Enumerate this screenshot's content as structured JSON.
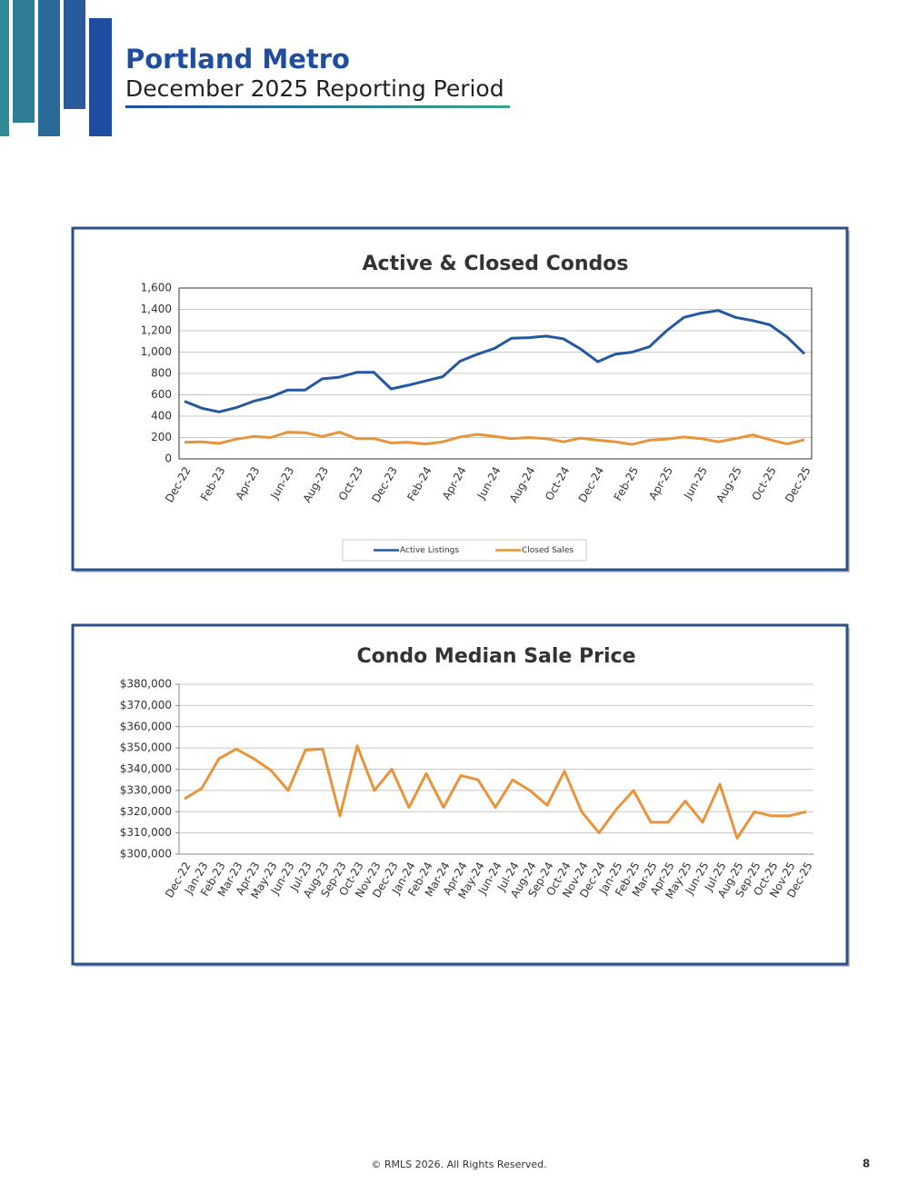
{
  "header": {
    "title": "Portland Metro",
    "subtitle": "December 2025 Reporting Period"
  },
  "chart_data": [
    {
      "type": "line",
      "title": "Active & Closed Condos",
      "categories": [
        "Dec-22",
        null,
        "Feb-23",
        null,
        "Apr-23",
        null,
        "Jun-23",
        null,
        "Aug-23",
        null,
        "Oct-23",
        null,
        "Dec-23",
        null,
        "Feb-24",
        null,
        "Apr-24",
        null,
        "Jun-24",
        null,
        "Aug-24",
        null,
        "Oct-24",
        null,
        "Dec-24",
        null,
        "Feb-25",
        null,
        "Apr-25",
        null,
        "Jun-25",
        null,
        "Aug-25",
        null,
        "Oct-25",
        null,
        "Dec-25"
      ],
      "series": [
        {
          "name": "Active Listings",
          "color": "#2458a0",
          "values": [
            540,
            475,
            440,
            480,
            540,
            580,
            645,
            645,
            750,
            765,
            810,
            810,
            655,
            690,
            730,
            770,
            915,
            980,
            1035,
            1130,
            1135,
            1150,
            1125,
            1030,
            910,
            980,
            1000,
            1050,
            1200,
            1325,
            1365,
            1390,
            1325,
            1295,
            1255,
            1140,
            985
          ]
        },
        {
          "name": "Closed Sales",
          "color": "#e8943a",
          "values": [
            155,
            160,
            145,
            185,
            210,
            200,
            250,
            245,
            210,
            250,
            190,
            190,
            150,
            155,
            140,
            160,
            205,
            230,
            210,
            190,
            200,
            190,
            160,
            195,
            175,
            160,
            135,
            175,
            185,
            205,
            190,
            160,
            190,
            225,
            180,
            140,
            180
          ]
        }
      ],
      "ylim": [
        0,
        1600
      ],
      "yticks": [
        0,
        200,
        400,
        600,
        800,
        {
          "value": 1000,
          "label": "1,000"
        },
        {
          "value": 1200,
          "label": "1,200"
        },
        {
          "value": 1400,
          "label": "1,400"
        },
        {
          "value": 1600,
          "label": "1,600"
        }
      ],
      "grid": true,
      "legend": "bottom"
    },
    {
      "type": "line",
      "title": "Condo Median Sale Price",
      "categories": [
        "Dec-22",
        "Jan-23",
        "Feb-23",
        "Mar-23",
        "Apr-23",
        "May-23",
        "Jun-23",
        "Jul-23",
        "Aug-23",
        "Sep-23",
        "Oct-23",
        "Nov-23",
        "Dec-23",
        "Jan-24",
        "Feb-24",
        "Mar-24",
        "Apr-24",
        "May-24",
        "Jun-24",
        "Jul-24",
        "Aug-24",
        "Sep-24",
        "Oct-24",
        "Nov-24",
        "Dec-24",
        "Jan-25",
        "Feb-25",
        "Mar-25",
        "Apr-25",
        "May-25",
        "Jun-25",
        "Jul-25",
        "Aug-25",
        "Sep-25",
        "Oct-25",
        "Nov-25",
        "Dec-25"
      ],
      "series": [
        {
          "name": "Median Sale Price",
          "color": "#e8943a",
          "values": [
            326000,
            331000,
            345000,
            349500,
            345000,
            339500,
            330000,
            349000,
            349500,
            318000,
            351000,
            330000,
            340000,
            322000,
            338000,
            322000,
            337000,
            335000,
            322000,
            335000,
            330000,
            323000,
            339000,
            320000,
            310000,
            321000,
            330000,
            315000,
            315000,
            325000,
            315000,
            333000,
            307500,
            320000,
            318000,
            318000,
            320000
          ]
        }
      ],
      "ylim": [
        300000,
        380000
      ],
      "yticks": [
        {
          "value": 300000,
          "label": "$300,000"
        },
        {
          "value": 310000,
          "label": "$310,000"
        },
        {
          "value": 320000,
          "label": "$320,000"
        },
        {
          "value": 330000,
          "label": "$330,000"
        },
        {
          "value": 340000,
          "label": "$340,000"
        },
        {
          "value": 350000,
          "label": "$350,000"
        },
        {
          "value": 360000,
          "label": "$360,000"
        },
        {
          "value": 370000,
          "label": "$370,000"
        },
        {
          "value": 380000,
          "label": "$380,000"
        }
      ],
      "grid": true
    }
  ],
  "footer": {
    "copyright": "© RMLS 2026. All Rights Reserved.",
    "page": "8"
  }
}
